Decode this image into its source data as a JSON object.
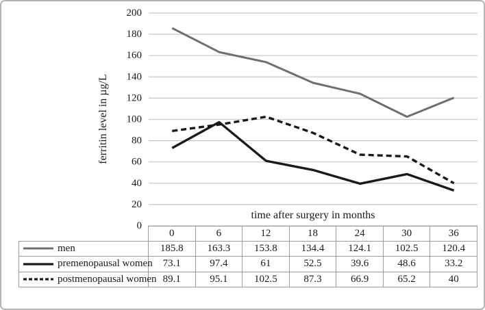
{
  "chart_data": {
    "type": "line",
    "title": "",
    "xlabel": "time after surgery in months",
    "ylabel": "ferritin level in µg/L",
    "categories": [
      0,
      6,
      12,
      18,
      24,
      30,
      36
    ],
    "series": [
      {
        "name": "men",
        "values": [
          185.8,
          163.3,
          153.8,
          134.4,
          124.1,
          102.5,
          120.4
        ],
        "color": "#6f6f6f",
        "dash": "solid",
        "width": 3
      },
      {
        "name": "premenopausal women",
        "values": [
          73.1,
          97.4,
          61,
          52.5,
          39.6,
          48.6,
          33.2
        ],
        "color": "#1a1a1a",
        "dash": "solid",
        "width": 3.4
      },
      {
        "name": "postmenopausal women",
        "values": [
          89.1,
          95.1,
          102.5,
          87.3,
          66.9,
          65.2,
          40
        ],
        "color": "#1a1a1a",
        "dash": "8 5",
        "width": 3.4
      }
    ],
    "ylim": [
      0,
      200
    ],
    "ytick_step": 20,
    "grid": true,
    "legend_position": "table-left-column"
  },
  "colors": {
    "gridline": "#c6c6c6",
    "table_border": "#9b9b9b",
    "text": "#1a1a1a",
    "frame_border": "#b5b5b5",
    "background": "#ffffff"
  }
}
